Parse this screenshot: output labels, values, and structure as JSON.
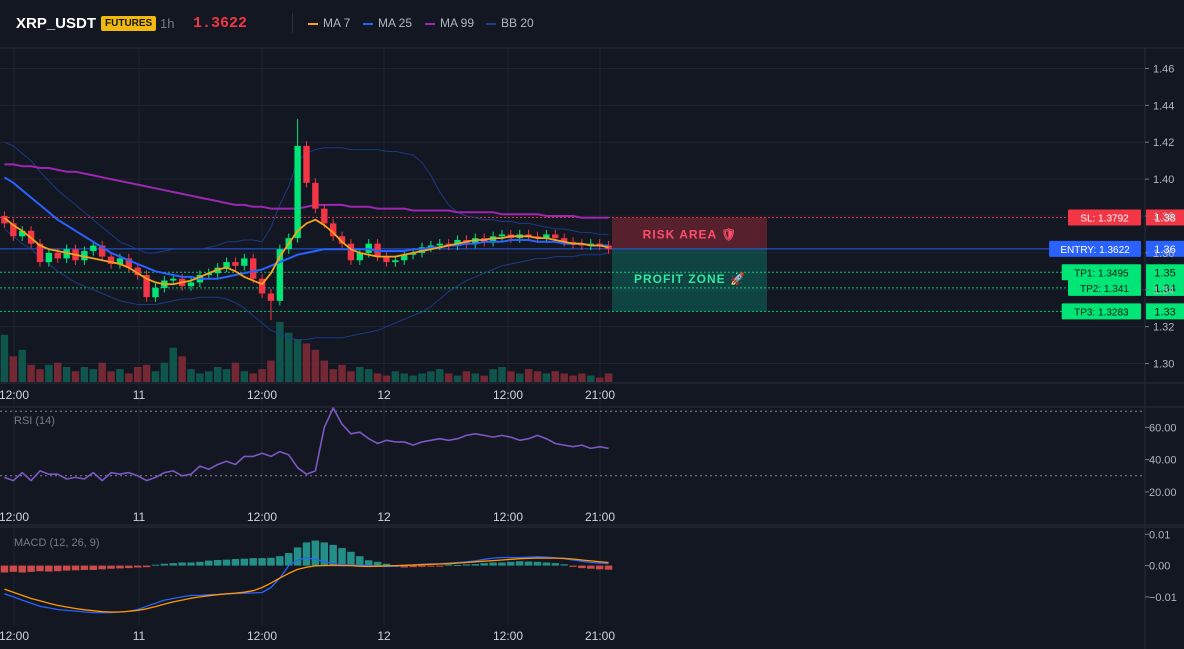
{
  "header": {
    "symbol": "XRP_USDT",
    "badge": "FUTURES",
    "timeframe": "1h",
    "price": "1.3622",
    "legend": [
      {
        "label": "MA 7",
        "color": "#f7a21b"
      },
      {
        "label": "MA 25",
        "color": "#2962ff"
      },
      {
        "label": "MA 99",
        "color": "#9c27b0"
      },
      {
        "label": "BB 20",
        "color": "#1e3d8f"
      }
    ]
  },
  "colors": {
    "up": "#089981",
    "up_bright": "#00e676",
    "down": "#f23645",
    "ma7": "#f7a21b",
    "ma25": "#2962ff",
    "ma99": "#9c27b0",
    "bb": "#1e3d8f",
    "rsi": "#7e57c2",
    "macd": "#2962ff",
    "signal": "#ff9800",
    "sl": "#f23645",
    "entry": "#2962ff",
    "tp": "#00e676"
  },
  "x_labels": [
    "12:00",
    "11",
    "12:00",
    "12",
    "12:00",
    "21:00"
  ],
  "chart_data": [
    {
      "type": "candlestick",
      "title": "XRP_USDT 1h",
      "ylim": [
        1.29,
        1.47
      ],
      "y_ticks": [
        "1.46",
        "1.44",
        "1.42",
        "1.40",
        "1.38",
        "1.36",
        "1.34",
        "1.32",
        "1.30"
      ],
      "closes": [
        1.376,
        1.369,
        1.372,
        1.365,
        1.355,
        1.36,
        1.357,
        1.362,
        1.356,
        1.361,
        1.364,
        1.358,
        1.354,
        1.357,
        1.352,
        1.348,
        1.336,
        1.341,
        1.345,
        1.346,
        1.342,
        1.344,
        1.348,
        1.349,
        1.352,
        1.355,
        1.353,
        1.357,
        1.346,
        1.338,
        1.334,
        1.362,
        1.368,
        1.418,
        1.398,
        1.384,
        1.376,
        1.369,
        1.365,
        1.356,
        1.36,
        1.365,
        1.358,
        1.355,
        1.356,
        1.359,
        1.36,
        1.363,
        1.364,
        1.365,
        1.364,
        1.367,
        1.365,
        1.368,
        1.366,
        1.369,
        1.37,
        1.368,
        1.37,
        1.369,
        1.368,
        1.37,
        1.368,
        1.366,
        1.365,
        1.364,
        1.365,
        1.364,
        1.362
      ],
      "volumes": [
        22,
        12,
        15,
        8,
        6,
        8,
        9,
        7,
        5,
        7,
        6,
        9,
        5,
        6,
        4,
        7,
        8,
        5,
        9,
        16,
        12,
        6,
        4,
        5,
        7,
        6,
        9,
        5,
        4,
        6,
        10,
        28,
        23,
        20,
        18,
        15,
        10,
        6,
        8,
        5,
        7,
        6,
        4,
        3,
        5,
        4,
        3,
        4,
        5,
        6,
        4,
        3,
        5,
        4,
        3,
        6,
        7,
        5,
        4,
        6,
        5,
        4,
        5,
        4,
        3,
        4,
        3,
        2,
        4
      ],
      "ma7": [
        1.379,
        1.375,
        1.372,
        1.368,
        1.364,
        1.362,
        1.361,
        1.36,
        1.359,
        1.358,
        1.357,
        1.356,
        1.355,
        1.354,
        1.352,
        1.349,
        1.346,
        1.344,
        1.343,
        1.343,
        1.344,
        1.345,
        1.347,
        1.349,
        1.351,
        1.352,
        1.35,
        1.347,
        1.345,
        1.343,
        1.349,
        1.358,
        1.365,
        1.372,
        1.376,
        1.378,
        1.375,
        1.371,
        1.366,
        1.362,
        1.36,
        1.359,
        1.358,
        1.358,
        1.358,
        1.359,
        1.36,
        1.361,
        1.362,
        1.363,
        1.364,
        1.365,
        1.366,
        1.367,
        1.367,
        1.368,
        1.368,
        1.369,
        1.369,
        1.369,
        1.368,
        1.368,
        1.367,
        1.366,
        1.365,
        1.365,
        1.364,
        1.364,
        1.363
      ],
      "ma25": [
        1.401,
        1.398,
        1.394,
        1.39,
        1.386,
        1.382,
        1.378,
        1.375,
        1.372,
        1.369,
        1.366,
        1.363,
        1.36,
        1.358,
        1.356,
        1.354,
        1.352,
        1.35,
        1.349,
        1.348,
        1.347,
        1.347,
        1.346,
        1.346,
        1.346,
        1.347,
        1.348,
        1.349,
        1.35,
        1.351,
        1.353,
        1.355,
        1.357,
        1.359,
        1.36,
        1.361,
        1.362,
        1.362,
        1.362,
        1.362,
        1.362,
        1.362,
        1.361,
        1.361,
        1.361,
        1.361,
        1.362,
        1.362,
        1.363,
        1.363,
        1.364,
        1.364,
        1.365,
        1.365,
        1.366,
        1.366,
        1.366,
        1.367,
        1.367,
        1.367,
        1.366,
        1.366,
        1.366,
        1.365,
        1.365,
        1.365,
        1.364,
        1.364,
        1.364
      ],
      "ma99": [
        1.408,
        1.408,
        1.407,
        1.407,
        1.406,
        1.406,
        1.405,
        1.404,
        1.404,
        1.403,
        1.402,
        1.401,
        1.4,
        1.399,
        1.398,
        1.397,
        1.396,
        1.395,
        1.394,
        1.393,
        1.392,
        1.391,
        1.39,
        1.389,
        1.388,
        1.387,
        1.386,
        1.386,
        1.385,
        1.385,
        1.384,
        1.384,
        1.384,
        1.384,
        1.385,
        1.386,
        1.386,
        1.386,
        1.386,
        1.385,
        1.385,
        1.385,
        1.384,
        1.384,
        1.384,
        1.384,
        1.383,
        1.383,
        1.383,
        1.383,
        1.383,
        1.382,
        1.382,
        1.382,
        1.382,
        1.382,
        1.381,
        1.381,
        1.381,
        1.381,
        1.381,
        1.38,
        1.38,
        1.38,
        1.38,
        1.379,
        1.379,
        1.379,
        1.379
      ],
      "bb_upper": [
        1.42,
        1.418,
        1.414,
        1.41,
        1.404,
        1.399,
        1.394,
        1.39,
        1.386,
        1.382,
        1.378,
        1.374,
        1.37,
        1.366,
        1.364,
        1.362,
        1.36,
        1.36,
        1.361,
        1.362,
        1.362,
        1.362,
        1.362,
        1.363,
        1.364,
        1.366,
        1.366,
        1.367,
        1.367,
        1.366,
        1.374,
        1.386,
        1.396,
        1.41,
        1.414,
        1.416,
        1.417,
        1.417,
        1.417,
        1.416,
        1.416,
        1.416,
        1.416,
        1.415,
        1.415,
        1.414,
        1.413,
        1.409,
        1.402,
        1.393,
        1.386,
        1.382,
        1.38,
        1.379,
        1.378,
        1.378,
        1.377,
        1.377,
        1.376,
        1.376,
        1.375,
        1.374,
        1.373,
        1.373,
        1.372,
        1.371,
        1.371,
        1.37,
        1.37
      ],
      "bb_lower": [
        1.373,
        1.369,
        1.365,
        1.362,
        1.358,
        1.354,
        1.35,
        1.347,
        1.344,
        1.342,
        1.34,
        1.338,
        1.336,
        1.334,
        1.333,
        1.332,
        1.332,
        1.332,
        1.333,
        1.334,
        1.335,
        1.335,
        1.336,
        1.336,
        1.336,
        1.335,
        1.333,
        1.33,
        1.326,
        1.322,
        1.318,
        1.316,
        1.314,
        1.313,
        1.313,
        1.314,
        1.314,
        1.314,
        1.314,
        1.315,
        1.316,
        1.317,
        1.318,
        1.32,
        1.322,
        1.324,
        1.326,
        1.328,
        1.331,
        1.335,
        1.339,
        1.342,
        1.345,
        1.347,
        1.349,
        1.351,
        1.353,
        1.354,
        1.355,
        1.356,
        1.357,
        1.357,
        1.358,
        1.358,
        1.358,
        1.359,
        1.359,
        1.359,
        1.36
      ],
      "levels": [
        {
          "label": "SL: 1.3792",
          "value": 1.3792,
          "axis": "1.38",
          "kind": "sl"
        },
        {
          "label": "ENTRY: 1.3622",
          "value": 1.3622,
          "axis": "1.36",
          "kind": "entry"
        },
        {
          "label": "TP1: 1.3495",
          "value": 1.3495,
          "axis": "1.35",
          "kind": "tp"
        },
        {
          "label": "TP2: 1.341",
          "value": 1.341,
          "axis": "1.34",
          "kind": "tp"
        },
        {
          "label": "TP3: 1.3283",
          "value": 1.3283,
          "axis": "1.33",
          "kind": "tp"
        }
      ],
      "zones": [
        {
          "label": "RISK AREA 🛡",
          "from": 1.3622,
          "to": 1.3792,
          "kind": "risk"
        },
        {
          "label": "PROFIT ZONE 🚀",
          "from": 1.3283,
          "to": 1.3622,
          "kind": "profit"
        }
      ]
    },
    {
      "type": "line",
      "title": "RSI (14)",
      "ylim": [
        15,
        72
      ],
      "y_ticks": [
        60,
        40,
        20
      ],
      "y_tick_labels": [
        "60.00",
        "40.00",
        "20.00"
      ],
      "bands": [
        70,
        30
      ],
      "values": [
        29,
        27,
        32,
        27,
        33,
        31,
        31,
        28,
        29,
        28,
        32,
        27,
        32,
        31,
        32,
        30,
        27,
        29,
        32,
        33,
        30,
        31,
        36,
        34,
        37,
        39,
        37,
        42,
        42,
        44,
        42,
        45,
        43,
        35,
        31,
        33,
        60,
        72,
        62,
        56,
        57,
        53,
        50,
        52,
        51,
        51,
        49,
        51,
        52,
        53,
        52,
        53,
        55,
        56,
        55,
        54,
        55,
        54,
        52,
        53,
        55,
        53,
        50,
        49,
        48,
        49,
        47,
        48,
        47
      ]
    },
    {
      "type": "bar+line",
      "title": "MACD (12, 26, 9)",
      "ylim": [
        -0.018,
        0.012
      ],
      "y_ticks": [
        0.01,
        0.0,
        -0.01
      ],
      "y_tick_labels": [
        "0.01",
        "0.00",
        "−0.01"
      ],
      "hist": [
        -0.0022,
        -0.002,
        -0.0022,
        -0.002,
        -0.0018,
        -0.0019,
        -0.0018,
        -0.0016,
        -0.0015,
        -0.0014,
        -0.0014,
        -0.0012,
        -0.001,
        -0.0009,
        -0.0008,
        -0.0006,
        -0.0005,
        0.0003,
        0.0006,
        0.0008,
        0.001,
        0.001,
        0.0012,
        0.0016,
        0.0018,
        0.0019,
        0.0021,
        0.0022,
        0.0024,
        0.0024,
        0.0025,
        0.003,
        0.004,
        0.0058,
        0.0074,
        0.008,
        0.0074,
        0.0066,
        0.0056,
        0.0044,
        0.003,
        0.0017,
        0.0012,
        0.0006,
        -0.0004,
        -0.0006,
        -0.0005,
        -0.0004,
        -0.0002,
        -0.0002,
        0.0003,
        0.0002,
        0.0004,
        0.0005,
        0.0008,
        0.001,
        0.001,
        0.0012,
        0.0014,
        0.0013,
        0.0012,
        0.001,
        0.0008,
        0.0004,
        -0.0004,
        -0.0008,
        -0.001,
        -0.0012,
        -0.0013
      ],
      "macd": [
        -0.009,
        -0.01,
        -0.011,
        -0.012,
        -0.013,
        -0.0135,
        -0.014,
        -0.0143,
        -0.0145,
        -0.0148,
        -0.015,
        -0.015,
        -0.015,
        -0.0148,
        -0.0146,
        -0.014,
        -0.013,
        -0.012,
        -0.011,
        -0.0105,
        -0.01,
        -0.0095,
        -0.0095,
        -0.0093,
        -0.0092,
        -0.009,
        -0.0089,
        -0.0088,
        -0.0087,
        -0.0086,
        -0.007,
        -0.004,
        0.0,
        0.0018,
        0.0025,
        0.002,
        0.0012,
        0.0006,
        0.0004,
        0.0002,
        0.0001,
        0.0,
        -0.0002,
        -0.0003,
        -0.0002,
        0.0,
        0.0002,
        0.0004,
        0.0005,
        0.0006,
        0.0008,
        0.001,
        0.0012,
        0.0015,
        0.002,
        0.0024,
        0.0026,
        0.0026,
        0.0026,
        0.0027,
        0.0028,
        0.0027,
        0.0025,
        0.0022,
        0.0018,
        0.0014,
        0.001,
        0.0008,
        0.0006
      ],
      "signal": [
        -0.0075,
        -0.0085,
        -0.0095,
        -0.0105,
        -0.0112,
        -0.012,
        -0.0127,
        -0.0132,
        -0.0137,
        -0.0141,
        -0.0144,
        -0.0147,
        -0.0148,
        -0.0148,
        -0.0146,
        -0.0143,
        -0.0138,
        -0.0131,
        -0.0123,
        -0.0116,
        -0.011,
        -0.0104,
        -0.01,
        -0.0096,
        -0.0093,
        -0.009,
        -0.0088,
        -0.0085,
        -0.008,
        -0.007,
        -0.0056,
        -0.004,
        -0.0025,
        -0.0012,
        -0.0005,
        -0.0001,
        0.0,
        0.0001,
        0.0,
        0.0,
        -0.0002,
        -0.0003,
        -0.0002,
        -0.0001,
        0.0,
        0.0001,
        0.0002,
        0.0003,
        0.0004,
        0.0005,
        0.0006,
        0.0008,
        0.001,
        0.0012,
        0.0014,
        0.0016,
        0.0018,
        0.002,
        0.0022,
        0.0023,
        0.0024,
        0.0024,
        0.0024,
        0.0023,
        0.0021,
        0.0018,
        0.0015,
        0.0012,
        0.001
      ]
    }
  ]
}
